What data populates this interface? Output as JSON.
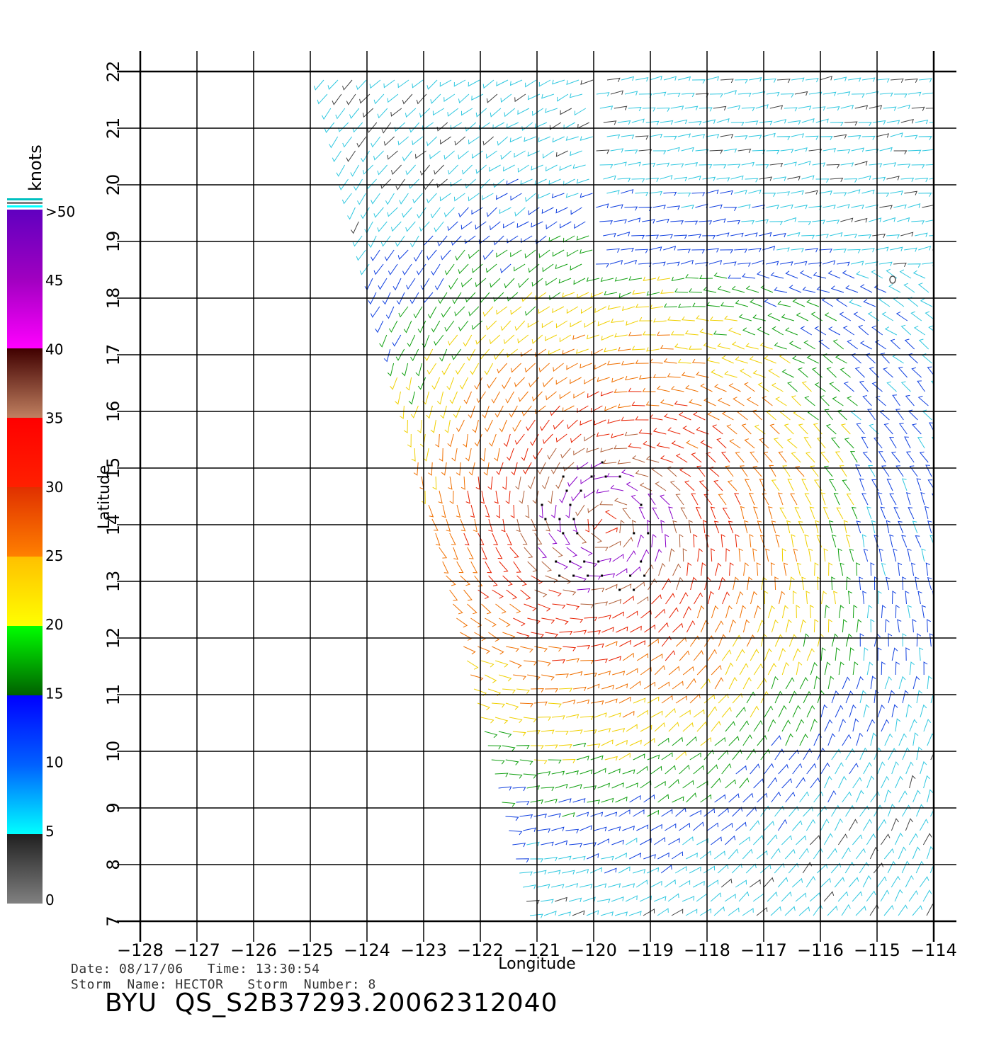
{
  "map": {
    "lon_range": [
      -128,
      -114
    ],
    "lat_range": [
      7,
      22
    ],
    "lon_ticks": [
      "−128",
      "−127",
      "−126",
      "−125",
      "−124",
      "−123",
      "−122",
      "−121",
      "−120",
      "−119",
      "−118",
      "−117",
      "−116",
      "−115",
      "−114"
    ],
    "lat_ticks": [
      "7",
      "8",
      "9",
      "10",
      "11",
      "12",
      "13",
      "14",
      "15",
      "16",
      "17",
      "18",
      "19",
      "20",
      "21",
      "22"
    ],
    "xlabel": "Longitude",
    "ylabel": "Latitude",
    "grid": true,
    "storm_center": {
      "lon": -119.8,
      "lat": 14.0
    },
    "field_type": "wind vector barbs"
  },
  "colorbar": {
    "unit": "knots",
    "labels": [
      ">50",
      "45",
      "40",
      "35",
      "30",
      "25",
      "20",
      "15",
      "10",
      "5",
      "0"
    ],
    "stops": [
      {
        "value": 0,
        "color": "#808080"
      },
      {
        "value": 5,
        "color": "#202020"
      },
      {
        "value": 5,
        "color": "#00ffff"
      },
      {
        "value": 10,
        "color": "#0060ff"
      },
      {
        "value": 15,
        "color": "#0000ff"
      },
      {
        "value": 15,
        "color": "#006000"
      },
      {
        "value": 20,
        "color": "#00ff00"
      },
      {
        "value": 20,
        "color": "#ffff00"
      },
      {
        "value": 25,
        "color": "#ffc000"
      },
      {
        "value": 25,
        "color": "#ff8000"
      },
      {
        "value": 30,
        "color": "#e03000"
      },
      {
        "value": 30,
        "color": "#ff2000"
      },
      {
        "value": 35,
        "color": "#ff0000"
      },
      {
        "value": 35,
        "color": "#c08060"
      },
      {
        "value": 40,
        "color": "#400000"
      },
      {
        "value": 40,
        "color": "#ff00ff"
      },
      {
        "value": 45,
        "color": "#a000c0"
      },
      {
        "value": 50,
        "color": "#6000c0"
      }
    ]
  },
  "footer": {
    "date_line": "Date: 08/17/06   Time: 13:30:54",
    "storm_line": "Storm  Name: HECTOR   Storm  Number: 8",
    "product": "BYU  QS_S2B37293.20062312040"
  }
}
